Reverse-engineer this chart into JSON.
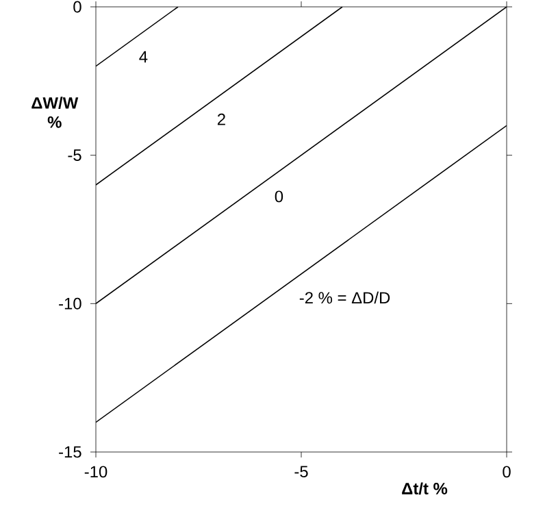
{
  "chart_data": {
    "type": "line",
    "xlabel": "Δt/t   %",
    "ylabel": "ΔW/W %",
    "xlim": [
      -10,
      0
    ],
    "ylim": [
      -15,
      0
    ],
    "xticks": [
      -10,
      -5,
      0
    ],
    "yticks": [
      -15,
      -10,
      -5,
      0
    ],
    "grid": false,
    "legend": false,
    "marker": "none",
    "line_style": "solid",
    "series": [
      {
        "name": "4",
        "color": "#000000",
        "x": [
          -10,
          -8
        ],
        "values": [
          -2,
          0
        ]
      },
      {
        "name": "2",
        "color": "#000000",
        "x": [
          -10,
          -4
        ],
        "values": [
          -6,
          0
        ]
      },
      {
        "name": "0",
        "color": "#000000",
        "x": [
          -10,
          0
        ],
        "values": [
          -10,
          0
        ]
      },
      {
        "name": "-2 % = ΔD/D",
        "color": "#000000",
        "x": [
          -10,
          0
        ],
        "values": [
          -14,
          -4
        ]
      }
    ]
  }
}
